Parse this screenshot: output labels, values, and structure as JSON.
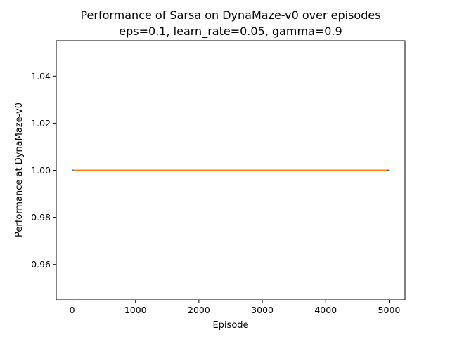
{
  "chart_data": {
    "type": "line",
    "title": "Performance of Sarsa on DynaMaze-v0 over episodes",
    "subtitle": "eps=0.1, learn_rate=0.05, gamma=0.9",
    "xlabel": "Episode",
    "ylabel": "Performance at DynaMaze-v0",
    "xlim": [
      -250,
      5250
    ],
    "ylim": [
      0.945,
      1.055
    ],
    "x_ticks": [
      0,
      1000,
      2000,
      3000,
      4000,
      5000
    ],
    "x_tick_labels": [
      "0",
      "1000",
      "2000",
      "3000",
      "4000",
      "5000"
    ],
    "y_ticks": [
      0.96,
      0.98,
      1.0,
      1.02,
      1.04
    ],
    "y_tick_labels": [
      "0.96",
      "0.98",
      "1.00",
      "1.02",
      "1.04"
    ],
    "grid": false,
    "legend": "none",
    "series": [
      {
        "color": "#1f77b4",
        "x": [
          0,
          5000
        ],
        "y": [
          1.0,
          1.0
        ]
      },
      {
        "color": "#ff7f0e",
        "x": [
          25,
          4975
        ],
        "y": [
          1.0,
          1.0
        ]
      }
    ]
  }
}
